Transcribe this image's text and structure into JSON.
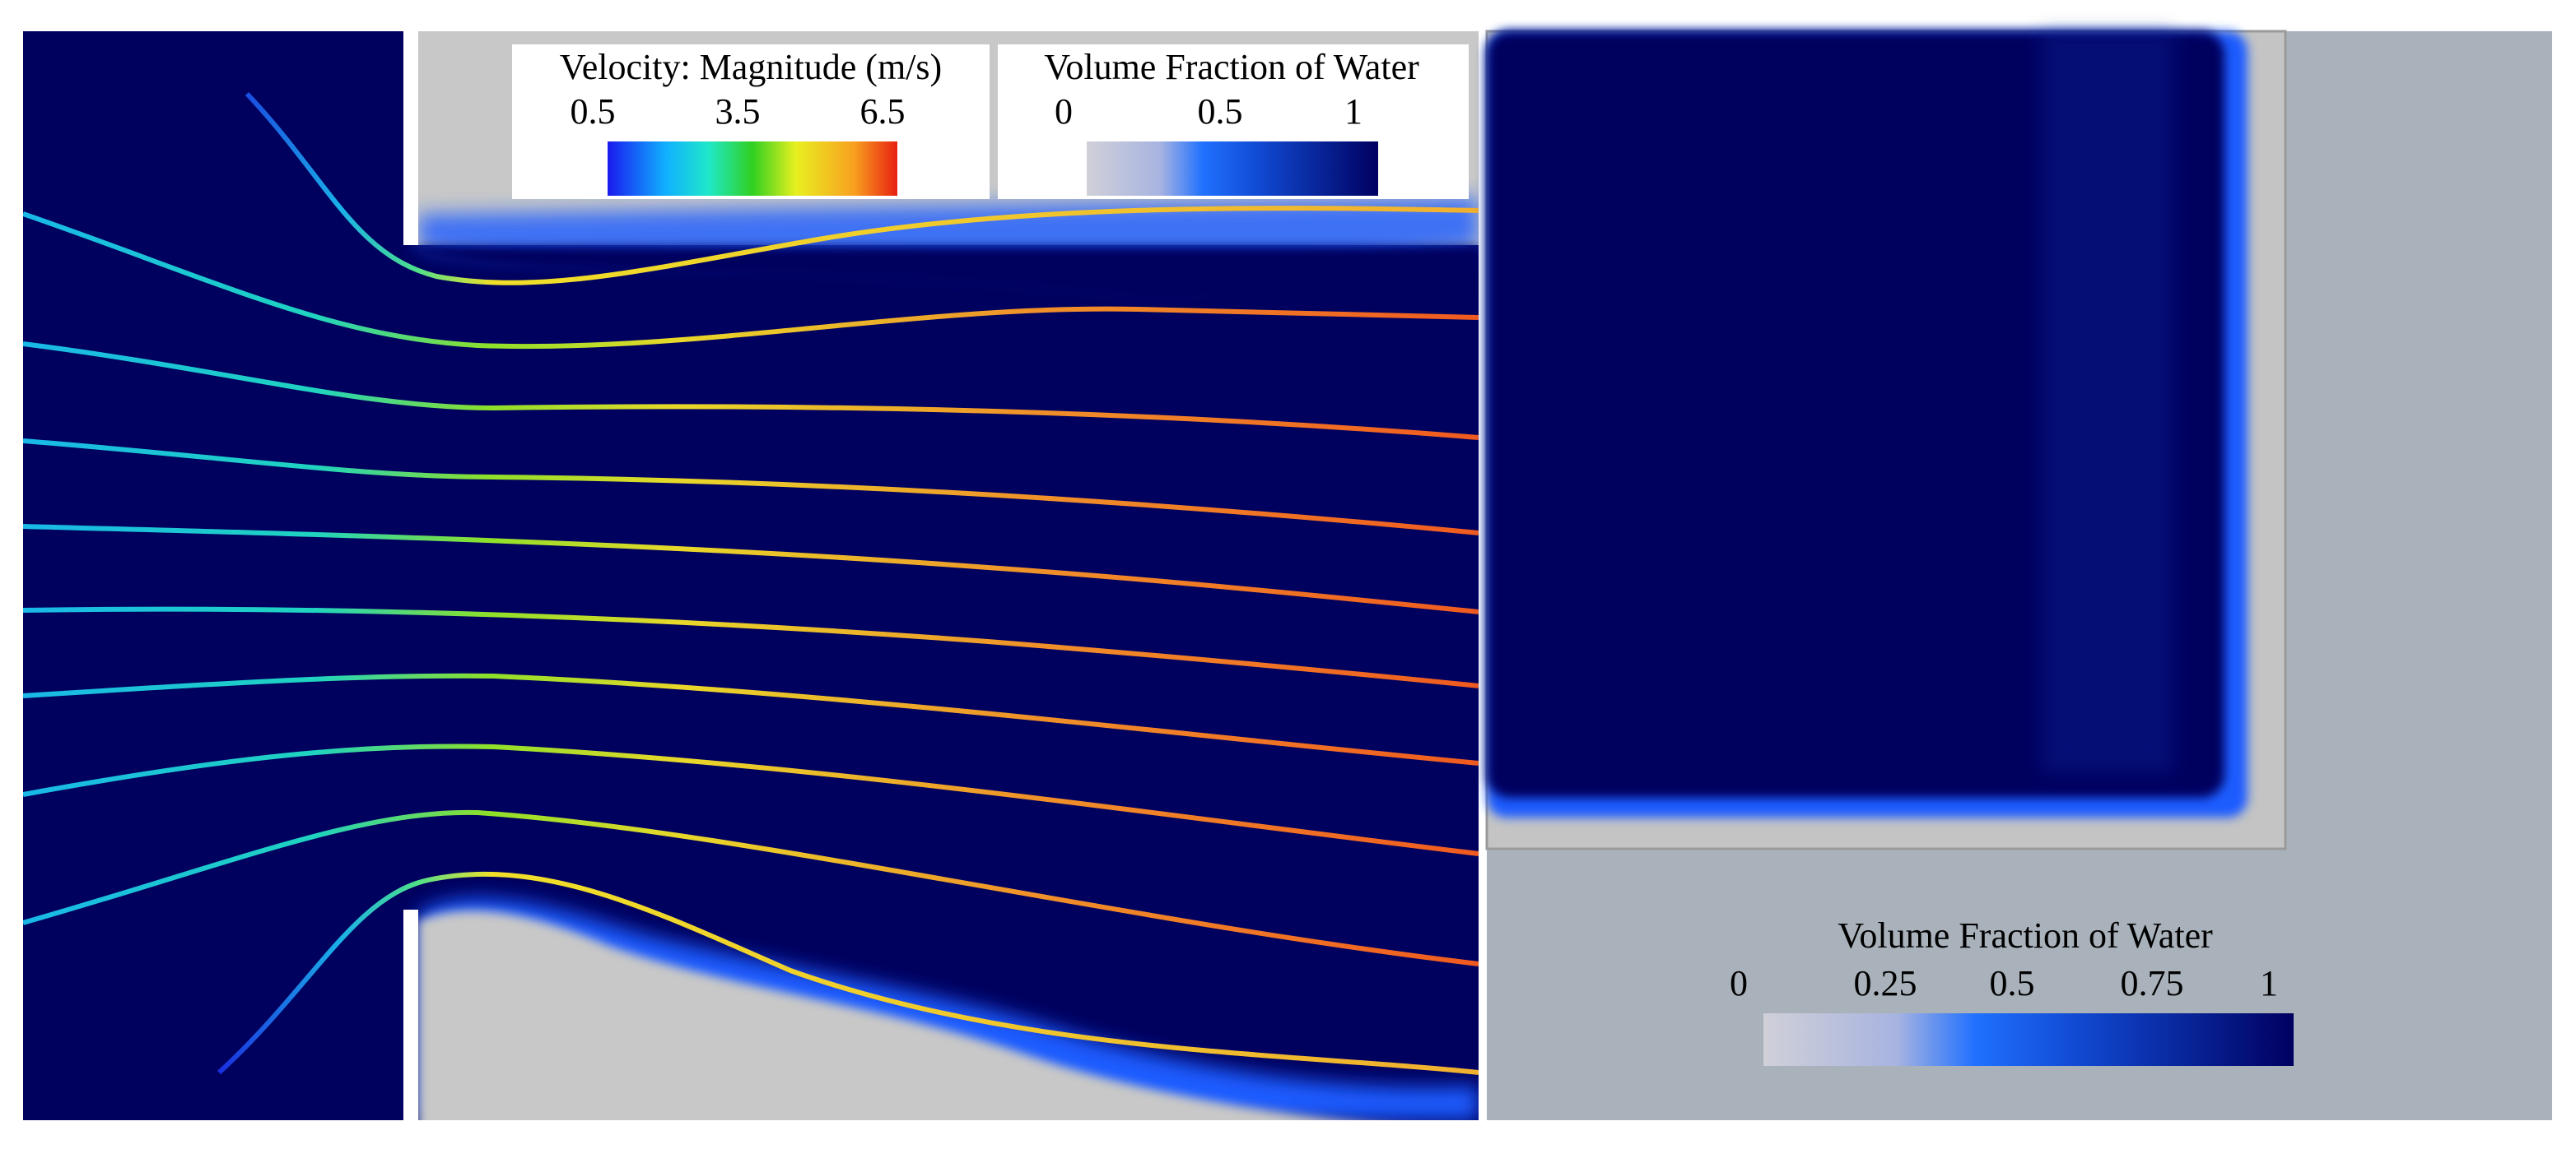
{
  "left_panel": {
    "legends": [
      {
        "title": "Velocity: Magnitude (m/s)",
        "ticks": [
          "0.5",
          "3.5",
          "6.5"
        ]
      },
      {
        "title": "Volume Fraction of Water",
        "ticks": [
          "0",
          "0.5",
          "1"
        ]
      }
    ]
  },
  "right_panel": {
    "legend": {
      "title": "Volume Fraction of Water",
      "ticks": [
        "0",
        "0.25",
        "0.5",
        "0.75",
        "1"
      ]
    }
  }
}
